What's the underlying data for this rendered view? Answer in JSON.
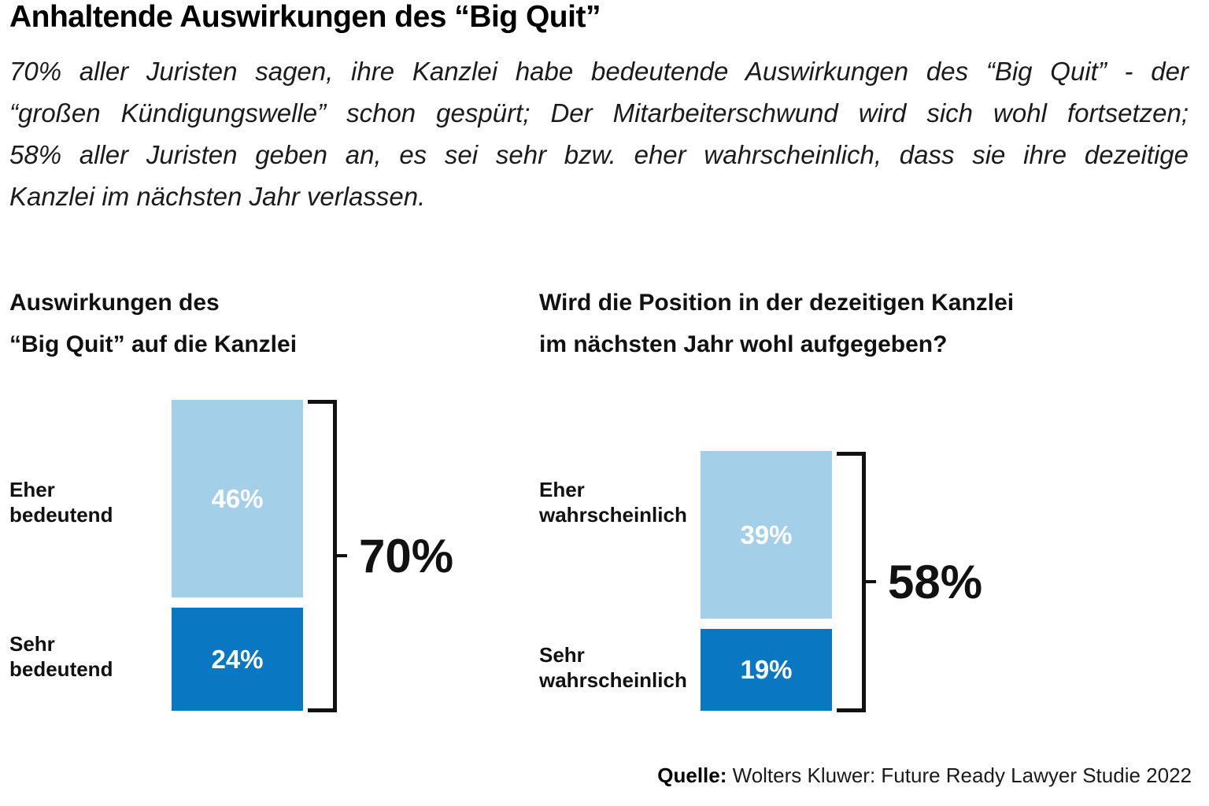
{
  "title": "Anhaltende Auswirkungen des “Big Quit”",
  "subtitle": {
    "lines": [
      "70% aller Juristen sagen, ihre Kanzlei habe bedeutende Auswirkungen des “Big Quit” - der",
      "“großen Kündigungswelle” schon gespürt; Der Mitarbeiterschwund wird sich wohl fortsetzen;",
      "58% aller Juristen geben an, es sei sehr bzw. eher wahrscheinlich, dass sie ihre dezeitige",
      "Kanzlei im nächsten Jahr verlassen."
    ]
  },
  "chart_data": [
    {
      "type": "bar",
      "subtype": "stacked-column",
      "title_lines": [
        "Auswirkungen des",
        "“Big Quit” auf die Kanzlei"
      ],
      "categories": [
        "Eher bedeutend",
        "Sehr bedeutend"
      ],
      "values": [
        46,
        24
      ],
      "value_labels": [
        "46%",
        "24%"
      ],
      "total": 70,
      "total_label": "70%",
      "colors": [
        "#a4cfe9",
        "#0a77c2"
      ],
      "unit": "percent",
      "legend_position": "left",
      "grid": false
    },
    {
      "type": "bar",
      "subtype": "stacked-column",
      "title_lines": [
        "Wird die Position in der dezeitigen Kanzlei",
        "im nächsten Jahr wohl aufgegeben?"
      ],
      "categories": [
        "Eher wahrscheinlich",
        "Sehr wahrscheinlich"
      ],
      "values": [
        39,
        19
      ],
      "value_labels": [
        "39%",
        "19%"
      ],
      "total": 58,
      "total_label": "58%",
      "colors": [
        "#a4cfe9",
        "#0a77c2"
      ],
      "unit": "percent",
      "legend_position": "left",
      "grid": false
    }
  ],
  "footer": {
    "source_label": "Quelle:",
    "source_text": "Wolters Kluwer: Future Ready Lawyer Studie 2022"
  },
  "colors": {
    "light_blue": "#a4cfe9",
    "dark_blue": "#0a77c2",
    "text": "#111111",
    "background": "#ffffff"
  }
}
